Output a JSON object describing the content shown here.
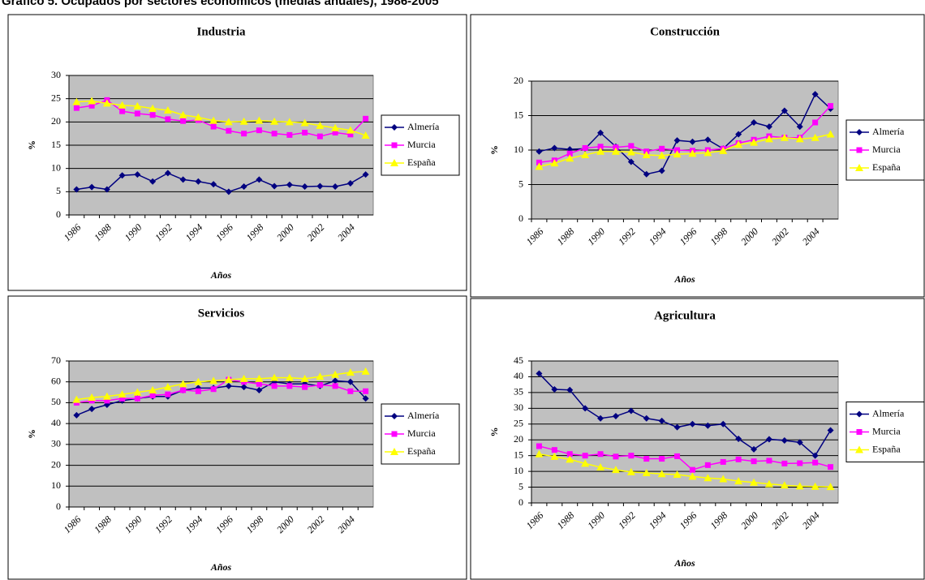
{
  "title": "Gráfico 5. Ocupados por sectores económicos (medias anuales), 1986-2005",
  "chart_data": [
    {
      "type": "line",
      "title": "Industria",
      "x_label": "Años",
      "y_label": "%",
      "categories": [
        "1986",
        null,
        "1988",
        null,
        "1990",
        null,
        "1992",
        null,
        "1994",
        null,
        "1996",
        null,
        "1998",
        null,
        "2000",
        null,
        "2002",
        null,
        "2004",
        null
      ],
      "ylim": [
        0,
        30
      ],
      "yticks": [
        0,
        5,
        10,
        15,
        20,
        25,
        30
      ],
      "grid": true,
      "legend": "right",
      "series": [
        {
          "name": "Almería",
          "color": "#000080",
          "marker": "diamond",
          "values": [
            5.5,
            6,
            5.5,
            8.5,
            8.7,
            7.2,
            9,
            7.6,
            7.2,
            6.6,
            5,
            6.1,
            7.6,
            6.2,
            6.5,
            6.1,
            6.2,
            6.1,
            6.8,
            8.7
          ]
        },
        {
          "name": "Murcia",
          "color": "#ff00ff",
          "marker": "square",
          "values": [
            23,
            23.5,
            24.7,
            22.3,
            21.8,
            21.5,
            20.6,
            20.2,
            20.4,
            19,
            18.1,
            17.5,
            18.2,
            17.5,
            17.2,
            17.7,
            16.9,
            17.7,
            17.3,
            20.7
          ]
        },
        {
          "name": "España",
          "color": "#ffff00",
          "marker": "triangle",
          "values": [
            24.3,
            24.5,
            24,
            23.6,
            23.4,
            22.9,
            22.5,
            21.5,
            21,
            20.3,
            20,
            20.1,
            20.3,
            20.1,
            20,
            19.8,
            19.2,
            18.7,
            18.2,
            17.1
          ]
        }
      ]
    },
    {
      "type": "line",
      "title": "Construcción",
      "x_label": "Años",
      "y_label": "%",
      "categories": [
        "1986",
        null,
        "1988",
        null,
        "1990",
        null,
        "1992",
        null,
        "1994",
        null,
        "1996",
        null,
        "1998",
        null,
        "2000",
        null,
        "2002",
        null,
        "2004",
        null
      ],
      "ylim": [
        0,
        20
      ],
      "yticks": [
        0,
        5,
        10,
        15,
        20
      ],
      "grid": true,
      "legend": "right",
      "series": [
        {
          "name": "Almería",
          "color": "#000080",
          "marker": "diamond",
          "values": [
            9.8,
            10.3,
            10.1,
            10.2,
            12.5,
            10.5,
            8.3,
            6.5,
            7,
            11.4,
            11.2,
            11.5,
            10.2,
            12.3,
            14,
            13.4,
            15.7,
            13.4,
            18.1,
            16
          ]
        },
        {
          "name": "Murcia",
          "color": "#ff00ff",
          "marker": "square",
          "values": [
            8.2,
            8.5,
            9.5,
            10.3,
            10.5,
            10.4,
            10.6,
            9.8,
            10.2,
            10,
            9.9,
            10,
            10.2,
            11,
            11.5,
            12,
            11.8,
            11.8,
            14,
            16.4
          ]
        },
        {
          "name": "España",
          "color": "#ffff00",
          "marker": "triangle",
          "values": [
            7.6,
            8.1,
            8.8,
            9.3,
            9.8,
            9.8,
            9.7,
            9.3,
            9.2,
            9.4,
            9.5,
            9.6,
            9.9,
            10.8,
            11.1,
            11.6,
            11.8,
            11.6,
            11.8,
            12.3
          ]
        }
      ]
    },
    {
      "type": "line",
      "title": "Servicios",
      "x_label": "Años",
      "y_label": "%",
      "categories": [
        "1986",
        null,
        "1988",
        null,
        "1990",
        null,
        "1992",
        null,
        "1994",
        null,
        "1996",
        null,
        "1998",
        null,
        "2000",
        null,
        "2002",
        null,
        "2004",
        null
      ],
      "ylim": [
        0,
        70
      ],
      "yticks": [
        0,
        10,
        20,
        30,
        40,
        50,
        60,
        70
      ],
      "grid": true,
      "legend": "right",
      "series": [
        {
          "name": "Almería",
          "color": "#000080",
          "marker": "diamond",
          "values": [
            44,
            47,
            49,
            51,
            52,
            53,
            53,
            56,
            57,
            57,
            58,
            57.5,
            56,
            60,
            59,
            59,
            58,
            60.5,
            60,
            52
          ]
        },
        {
          "name": "Murcia",
          "color": "#ff00ff",
          "marker": "square",
          "values": [
            50,
            51,
            51,
            52,
            52,
            53.5,
            54,
            56,
            55.5,
            56.5,
            61,
            60,
            59,
            58,
            58,
            57.5,
            58.5,
            58,
            55.5,
            55.5
          ]
        },
        {
          "name": "España",
          "color": "#ffff00",
          "marker": "triangle",
          "values": [
            51.5,
            52.5,
            53,
            54,
            55,
            56,
            57.5,
            59,
            60,
            60.5,
            61,
            61.5,
            61.5,
            62,
            62,
            61.5,
            62.5,
            63.5,
            64.5,
            65
          ]
        }
      ]
    },
    {
      "type": "line",
      "title": "Agricultura",
      "x_label": "Años",
      "y_label": "%",
      "categories": [
        "1986",
        null,
        "1988",
        null,
        "1990",
        null,
        "1992",
        null,
        "1994",
        null,
        "1996",
        null,
        "1998",
        null,
        "2000",
        null,
        "2002",
        null,
        "2004",
        null
      ],
      "ylim": [
        0,
        45
      ],
      "yticks": [
        0,
        5,
        10,
        15,
        20,
        25,
        30,
        35,
        40,
        45
      ],
      "grid": true,
      "legend": "right",
      "series": [
        {
          "name": "Almería",
          "color": "#000080",
          "marker": "diamond",
          "values": [
            41,
            36,
            35.8,
            30,
            26.8,
            27.5,
            29.2,
            26.8,
            26,
            24,
            25,
            24.5,
            25,
            20.3,
            17,
            20.2,
            19.8,
            19.2,
            15,
            23
          ]
        },
        {
          "name": "Murcia",
          "color": "#ff00ff",
          "marker": "square",
          "values": [
            18,
            16.8,
            15.5,
            15,
            15.5,
            14.7,
            15,
            14,
            14,
            14.8,
            10.5,
            12,
            13,
            13.8,
            13.2,
            13.4,
            12.5,
            12.6,
            12.8,
            11.4
          ]
        },
        {
          "name": "España",
          "color": "#ffff00",
          "marker": "triangle",
          "values": [
            15.5,
            14.7,
            13.8,
            12.5,
            11.3,
            10.5,
            9.8,
            9.5,
            9.2,
            9,
            8.4,
            7.9,
            7.6,
            6.9,
            6.5,
            6,
            5.6,
            5.3,
            5.2,
            5.1
          ]
        }
      ]
    }
  ]
}
